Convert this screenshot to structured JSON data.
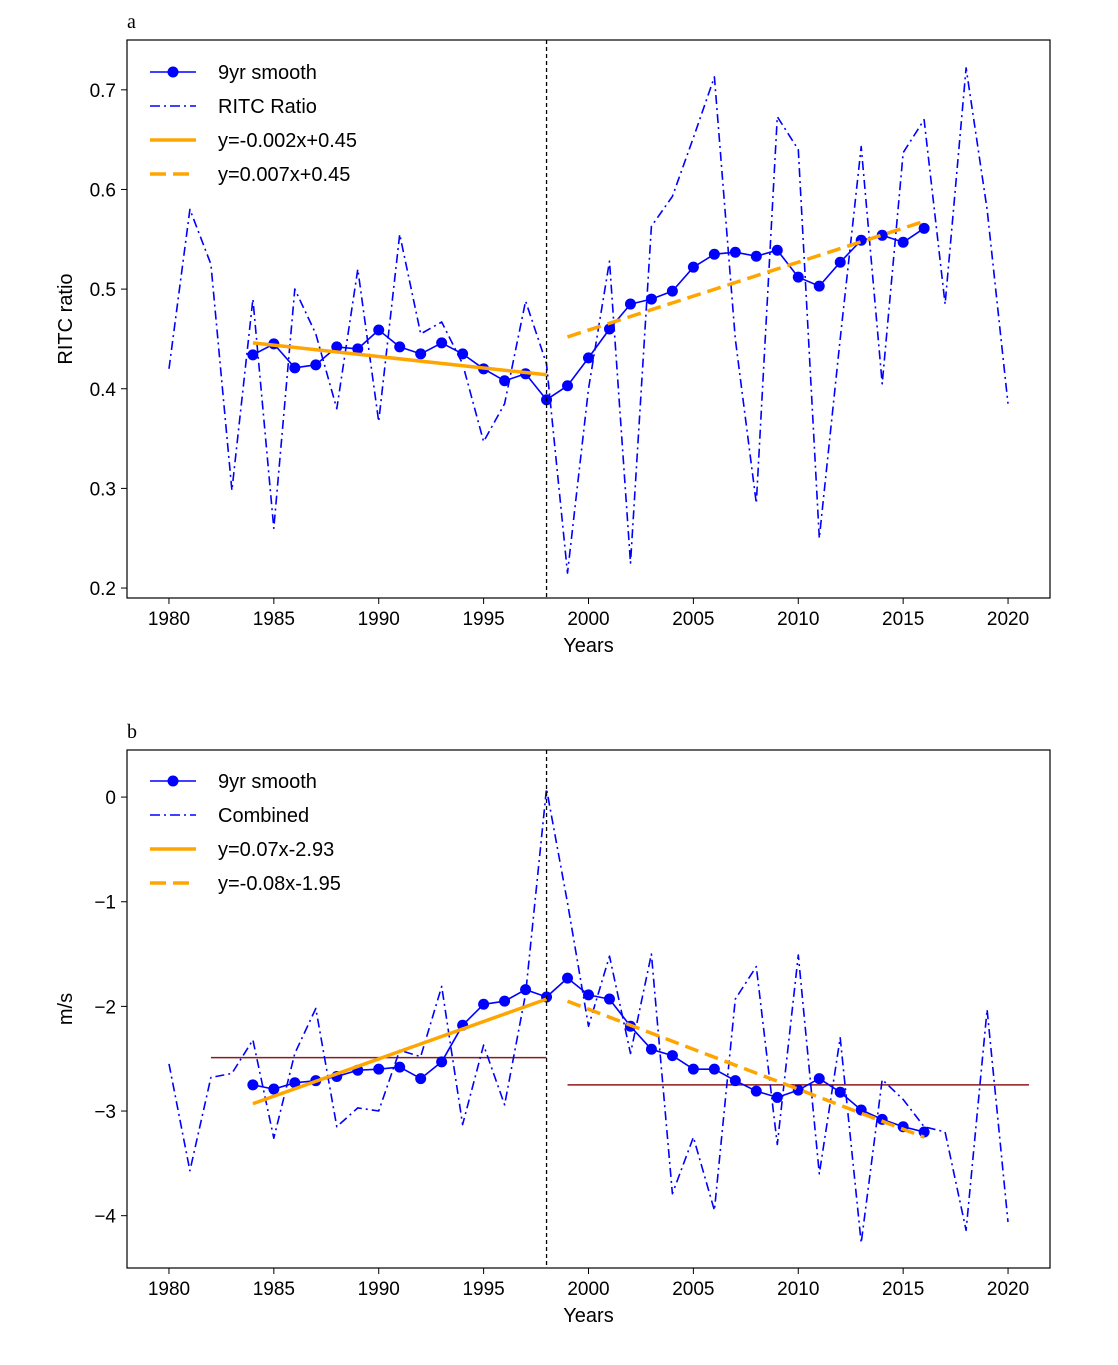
{
  "chart_data": [
    {
      "panel": "a",
      "type": "line",
      "xlabel": "Years",
      "ylabel": "RITC ratio",
      "xlim": [
        1978,
        2022
      ],
      "ylim": [
        0.19,
        0.75
      ],
      "xticks": [
        1980,
        1985,
        1990,
        1995,
        2000,
        2005,
        2010,
        2015,
        2020
      ],
      "yticks": [
        0.2,
        0.3,
        0.4,
        0.5,
        0.6,
        0.7
      ],
      "ytick_labels": [
        "0.2",
        "0.3",
        "0.4",
        "0.5",
        "0.6",
        "0.7"
      ],
      "breakpoint_year": 1998,
      "legend_position": "upper-left",
      "series": [
        {
          "name": "9yr smooth",
          "style": "solid-markers",
          "color": "#0000ff",
          "x": [
            1984,
            1985,
            1986,
            1987,
            1988,
            1989,
            1990,
            1991,
            1992,
            1993,
            1994,
            1995,
            1996,
            1997,
            1998,
            1999,
            2000,
            2001,
            2002,
            2003,
            2004,
            2005,
            2006,
            2007,
            2008,
            2009,
            2010,
            2011,
            2012,
            2013,
            2014,
            2015,
            2016
          ],
          "y": [
            0.434,
            0.445,
            0.421,
            0.424,
            0.442,
            0.44,
            0.459,
            0.442,
            0.435,
            0.446,
            0.435,
            0.42,
            0.408,
            0.415,
            0.389,
            0.403,
            0.431,
            0.46,
            0.485,
            0.49,
            0.498,
            0.522,
            0.535,
            0.537,
            0.533,
            0.539,
            0.512,
            0.503,
            0.527,
            0.549,
            0.554,
            0.547,
            0.561
          ]
        },
        {
          "name": "RITC Ratio",
          "style": "dashdot",
          "color": "#0000ff",
          "x": [
            1980,
            1981,
            1982,
            1983,
            1984,
            1985,
            1986,
            1987,
            1988,
            1989,
            1990,
            1991,
            1992,
            1993,
            1994,
            1995,
            1996,
            1997,
            1998,
            1999,
            2000,
            2001,
            2002,
            2003,
            2004,
            2005,
            2006,
            2007,
            2008,
            2009,
            2010,
            2011,
            2012,
            2013,
            2014,
            2015,
            2016,
            2017,
            2018,
            2019,
            2020
          ],
          "y": [
            0.42,
            0.58,
            0.525,
            0.298,
            0.49,
            0.26,
            0.5,
            0.455,
            0.38,
            0.52,
            0.367,
            0.555,
            0.455,
            0.467,
            0.425,
            0.347,
            0.385,
            0.488,
            0.425,
            0.215,
            0.4,
            0.528,
            0.225,
            0.563,
            0.593,
            0.652,
            0.713,
            0.45,
            0.285,
            0.673,
            0.64,
            0.25,
            0.45,
            0.643,
            0.405,
            0.637,
            0.67,
            0.485,
            0.722,
            0.58,
            0.385
          ]
        },
        {
          "name": "y=-0.002x+0.45",
          "style": "solid-thick",
          "color": "#ffa500",
          "x": [
            1984,
            1998
          ],
          "y": [
            0.446,
            0.414
          ]
        },
        {
          "name": "y=0.007x+0.45",
          "style": "dashed-thick",
          "color": "#ffa500",
          "x": [
            1999,
            2016
          ],
          "y": [
            0.452,
            0.568
          ]
        }
      ],
      "reference_lines": []
    },
    {
      "panel": "b",
      "type": "line",
      "xlabel": "Years",
      "ylabel": "m/s",
      "xlim": [
        1978,
        2022
      ],
      "ylim": [
        -4.5,
        0.45
      ],
      "xticks": [
        1980,
        1985,
        1990,
        1995,
        2000,
        2005,
        2010,
        2015,
        2020
      ],
      "yticks": [
        0,
        -1,
        -2,
        -3,
        -4
      ],
      "ytick_labels": [
        "0",
        "−1",
        "−2",
        "−3",
        "−4"
      ],
      "breakpoint_year": 1998,
      "legend_position": "upper-left",
      "series": [
        {
          "name": "9yr smooth",
          "style": "solid-markers",
          "color": "#0000ff",
          "x": [
            1984,
            1985,
            1986,
            1987,
            1988,
            1989,
            1990,
            1991,
            1992,
            1993,
            1994,
            1995,
            1996,
            1997,
            1998,
            1999,
            2000,
            2001,
            2002,
            2003,
            2004,
            2005,
            2006,
            2007,
            2008,
            2009,
            2010,
            2011,
            2012,
            2013,
            2014,
            2015,
            2016
          ],
          "y": [
            -2.75,
            -2.79,
            -2.73,
            -2.71,
            -2.67,
            -2.61,
            -2.6,
            -2.58,
            -2.69,
            -2.53,
            -2.18,
            -1.98,
            -1.95,
            -1.84,
            -1.91,
            -1.73,
            -1.89,
            -1.93,
            -2.19,
            -2.41,
            -2.47,
            -2.6,
            -2.6,
            -2.71,
            -2.81,
            -2.87,
            -2.8,
            -2.69,
            -2.82,
            -2.99,
            -3.08,
            -3.15,
            -3.2
          ]
        },
        {
          "name": "Combined",
          "style": "dashdot",
          "color": "#0000ff",
          "x": [
            1980,
            1981,
            1982,
            1983,
            1984,
            1985,
            1986,
            1987,
            1988,
            1989,
            1990,
            1991,
            1992,
            1993,
            1994,
            1995,
            1996,
            1997,
            1998,
            1999,
            2000,
            2001,
            2002,
            2003,
            2004,
            2005,
            2006,
            2007,
            2008,
            2009,
            2010,
            2011,
            2012,
            2013,
            2014,
            2015,
            2016,
            2017,
            2018,
            2019,
            2020
          ],
          "y": [
            -2.55,
            -3.57,
            -2.68,
            -2.64,
            -2.32,
            -3.26,
            -2.45,
            -2.02,
            -3.15,
            -2.97,
            -3.0,
            -2.42,
            -2.48,
            -1.81,
            -3.13,
            -2.37,
            -2.94,
            -1.88,
            0.08,
            -1.01,
            -2.19,
            -1.52,
            -2.45,
            -1.5,
            -3.79,
            -3.25,
            -3.95,
            -1.93,
            -1.62,
            -3.32,
            -1.51,
            -3.6,
            -2.3,
            -4.26,
            -2.7,
            -2.89,
            -3.15,
            -3.2,
            -4.14,
            -2.03,
            -4.06
          ]
        },
        {
          "name": "y=0.07x-2.93",
          "style": "solid-thick",
          "color": "#ffa500",
          "x": [
            1984,
            1998
          ],
          "y": [
            -2.93,
            -1.93
          ]
        },
        {
          "name": "y=-0.08x-1.95",
          "style": "dashed-thick",
          "color": "#ffa500",
          "x": [
            1999,
            2016
          ],
          "y": [
            -1.95,
            -3.25
          ]
        }
      ],
      "reference_lines": [
        {
          "color": "#8b1a1a",
          "x": [
            1982,
            1998
          ],
          "y": -2.49
        },
        {
          "color": "#8b1a1a",
          "x": [
            1999,
            2021
          ],
          "y": -2.75
        }
      ]
    }
  ]
}
